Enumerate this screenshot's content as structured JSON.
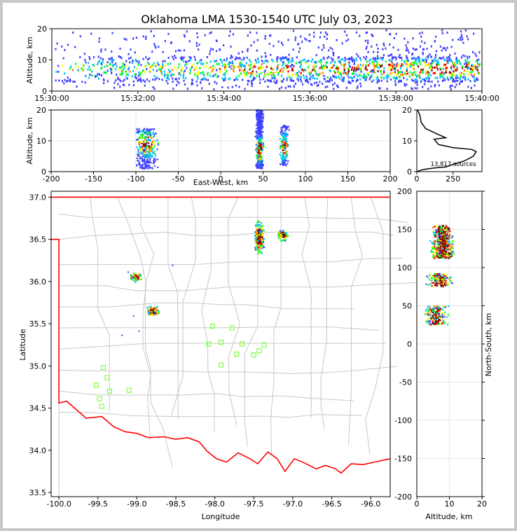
{
  "chart_data": [
    {
      "type": "heatmap",
      "panel": "time-altitude",
      "title": "Oklahoma LMA 1530-1540 UTC July 03, 2023",
      "ylabel": "Altitude, km",
      "xlim": [
        "15:30:00",
        "15:40:00"
      ],
      "ylim": [
        0,
        20
      ],
      "xticks": [
        "15:30:00",
        "15:32:00",
        "15:34:00",
        "15:36:00",
        "15:38:00",
        "15:40:00"
      ],
      "yticks": [
        0,
        10,
        20
      ],
      "main_band_km": [
        3,
        11
      ]
    },
    {
      "type": "heatmap",
      "panel": "east-west-altitude",
      "xlabel": "East-West, km",
      "ylabel": "Altitude, km",
      "xlim": [
        -200,
        200
      ],
      "ylim": [
        0,
        20
      ],
      "xticks": [
        -200,
        -150,
        -100,
        -50,
        0,
        50,
        100,
        150,
        200
      ],
      "yticks": [
        0,
        10,
        20
      ],
      "grid": true,
      "clusters": [
        {
          "x": [
            -105,
            -70
          ],
          "z": [
            1,
            14
          ]
        },
        {
          "x": [
            40,
            52
          ],
          "z": [
            1,
            20
          ]
        },
        {
          "x": [
            68,
            82
          ],
          "z": [
            2,
            15
          ]
        }
      ]
    },
    {
      "type": "line",
      "panel": "altitude-histogram",
      "xlim": [
        0,
        450
      ],
      "ylim": [
        0,
        20
      ],
      "xticks": [
        0,
        250
      ],
      "yticks": [
        0,
        10,
        20
      ],
      "annotation": "13,817 sources",
      "series": [
        {
          "x": [
            0,
            30,
            60,
            120,
            200,
            260,
            330,
            390,
            410,
            380,
            250,
            150,
            120,
            200,
            150,
            60,
            30,
            20,
            5
          ],
          "y": [
            0,
            0.5,
            0.8,
            1.2,
            1.5,
            2.5,
            3.5,
            5.0,
            6.5,
            7.2,
            7.8,
            8.8,
            10.5,
            11.0,
            12.0,
            14.0,
            16.0,
            18.5,
            20
          ]
        }
      ]
    },
    {
      "type": "scatter",
      "panel": "plan-view-map",
      "xlabel": "Longitude",
      "ylabel": "Latitude",
      "xlim": [
        -100.1,
        -95.75
      ],
      "ylim": [
        33.45,
        37.07
      ],
      "xticks": [
        -100.0,
        -99.5,
        -99.0,
        -98.5,
        -98.0,
        -97.5,
        -97.0,
        -96.5,
        -96.0
      ],
      "yticks": [
        33.5,
        34.0,
        34.5,
        35.0,
        35.5,
        36.0,
        36.5,
        37.0
      ],
      "stations": {
        "lon": [
          -98.03,
          -97.92,
          -97.78,
          -97.65,
          -98.08,
          -97.72,
          -97.92,
          -97.5,
          -97.43,
          -97.37,
          -99.43,
          -99.38,
          -99.52,
          -99.48,
          -99.35,
          -99.1,
          -99.45
        ],
        "lat": [
          35.47,
          35.28,
          35.45,
          35.26,
          35.26,
          35.14,
          35.01,
          35.13,
          35.18,
          35.25,
          34.98,
          34.86,
          34.77,
          34.61,
          34.7,
          34.71,
          34.52
        ]
      },
      "clusters": [
        {
          "lon": -99.02,
          "lat": 36.05
        },
        {
          "lon": -98.79,
          "lat": 35.65
        },
        {
          "lon": -97.43,
          "lat": 36.52
        },
        {
          "lon": -97.13,
          "lat": 36.55
        }
      ]
    },
    {
      "type": "heatmap",
      "panel": "altitude-north-south",
      "xlabel": "Altitude, km",
      "ylabel": "North-South, km",
      "xlim": [
        0,
        20
      ],
      "ylim": [
        -200,
        200
      ],
      "xticks": [
        0,
        10,
        20
      ],
      "yticks": [
        -200,
        -150,
        -100,
        -50,
        0,
        50,
        100,
        150,
        200
      ],
      "grid": true,
      "clusters": [
        {
          "ns": [
            112,
            155
          ],
          "alt": [
            1,
            20
          ]
        },
        {
          "ns": [
            75,
            92
          ],
          "alt": [
            1,
            16
          ]
        },
        {
          "ns": [
            25,
            50
          ],
          "alt": [
            0,
            12
          ]
        }
      ]
    }
  ],
  "colors": {
    "state_boundary": "#ff0000",
    "county_lines": "#c8c8c8",
    "stations": "#80ff40",
    "palette": [
      "#ffffff",
      "#4040ff",
      "#00c0ff",
      "#00ff00",
      "#ffff00",
      "#ff8000",
      "#ff0000",
      "#800000"
    ]
  }
}
